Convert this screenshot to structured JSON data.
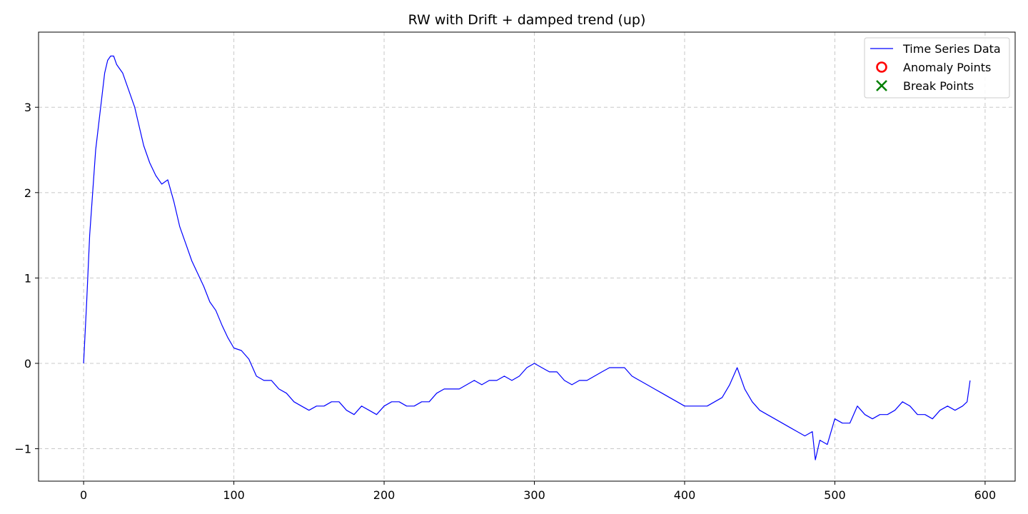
{
  "chart_data": {
    "type": "line",
    "title": "RW with Drift + damped trend (up)",
    "xlabel": "",
    "ylabel": "",
    "xlim": [
      -30,
      620
    ],
    "ylim": [
      -1.38,
      3.88
    ],
    "xticks": [
      0,
      100,
      200,
      300,
      400,
      500,
      600
    ],
    "xtick_labels": [
      "0",
      "100",
      "200",
      "300",
      "400",
      "500",
      "600"
    ],
    "yticks": [
      -1,
      0,
      1,
      2,
      3
    ],
    "ytick_labels": [
      "−1",
      "0",
      "1",
      "2",
      "3"
    ],
    "grid": true,
    "legend_position": "top-right",
    "legend": [
      {
        "label": "Time Series Data",
        "marker": "line",
        "color": "#0000ff"
      },
      {
        "label": "Anomaly Points",
        "marker": "circle",
        "color": "#ff0000"
      },
      {
        "label": "Break Points",
        "marker": "x",
        "color": "#008000"
      }
    ],
    "series": [
      {
        "name": "Time Series Data",
        "color": "#0000ff",
        "x": [
          0,
          2,
          4,
          6,
          8,
          10,
          12,
          14,
          16,
          18,
          20,
          22,
          24,
          26,
          28,
          30,
          32,
          34,
          36,
          38,
          40,
          44,
          48,
          52,
          56,
          60,
          64,
          68,
          72,
          76,
          80,
          84,
          88,
          92,
          96,
          100,
          105,
          110,
          115,
          120,
          125,
          130,
          135,
          140,
          145,
          150,
          155,
          160,
          165,
          170,
          175,
          180,
          185,
          190,
          195,
          200,
          205,
          210,
          215,
          220,
          225,
          230,
          235,
          240,
          245,
          250,
          255,
          260,
          265,
          270,
          275,
          280,
          285,
          290,
          295,
          300,
          305,
          310,
          315,
          320,
          325,
          330,
          335,
          340,
          345,
          350,
          355,
          360,
          365,
          370,
          375,
          380,
          385,
          390,
          395,
          400,
          405,
          410,
          415,
          420,
          425,
          430,
          435,
          440,
          445,
          450,
          455,
          460,
          465,
          470,
          475,
          480,
          485,
          487,
          490,
          495,
          500,
          505,
          510,
          515,
          520,
          525,
          530,
          535,
          540,
          545,
          550,
          555,
          560,
          565,
          570,
          575,
          580,
          585,
          588,
          590
        ],
        "y": [
          0.0,
          0.7,
          1.5,
          2.0,
          2.5,
          2.8,
          3.1,
          3.4,
          3.55,
          3.6,
          3.6,
          3.5,
          3.45,
          3.4,
          3.3,
          3.2,
          3.1,
          3.0,
          2.85,
          2.7,
          2.55,
          2.35,
          2.2,
          2.1,
          2.15,
          1.9,
          1.6,
          1.4,
          1.2,
          1.05,
          0.9,
          0.72,
          0.62,
          0.45,
          0.3,
          0.18,
          0.15,
          0.05,
          -0.15,
          -0.2,
          -0.2,
          -0.3,
          -0.35,
          -0.45,
          -0.5,
          -0.55,
          -0.5,
          -0.5,
          -0.45,
          -0.45,
          -0.55,
          -0.6,
          -0.5,
          -0.55,
          -0.6,
          -0.5,
          -0.45,
          -0.45,
          -0.5,
          -0.5,
          -0.45,
          -0.45,
          -0.35,
          -0.3,
          -0.3,
          -0.3,
          -0.25,
          -0.2,
          -0.25,
          -0.2,
          -0.2,
          -0.15,
          -0.2,
          -0.15,
          -0.05,
          0.0,
          -0.05,
          -0.1,
          -0.1,
          -0.2,
          -0.25,
          -0.2,
          -0.2,
          -0.15,
          -0.1,
          -0.05,
          -0.05,
          -0.05,
          -0.15,
          -0.2,
          -0.25,
          -0.3,
          -0.35,
          -0.4,
          -0.45,
          -0.5,
          -0.5,
          -0.5,
          -0.5,
          -0.45,
          -0.4,
          -0.25,
          -0.05,
          -0.3,
          -0.45,
          -0.55,
          -0.6,
          -0.65,
          -0.7,
          -0.75,
          -0.8,
          -0.85,
          -0.8,
          -1.13,
          -0.9,
          -0.95,
          -0.65,
          -0.7,
          -0.7,
          -0.5,
          -0.6,
          -0.65,
          -0.6,
          -0.6,
          -0.55,
          -0.45,
          -0.5,
          -0.6,
          -0.6,
          -0.65,
          -0.55,
          -0.5,
          -0.55,
          -0.5,
          -0.45,
          -0.2
        ]
      }
    ]
  }
}
